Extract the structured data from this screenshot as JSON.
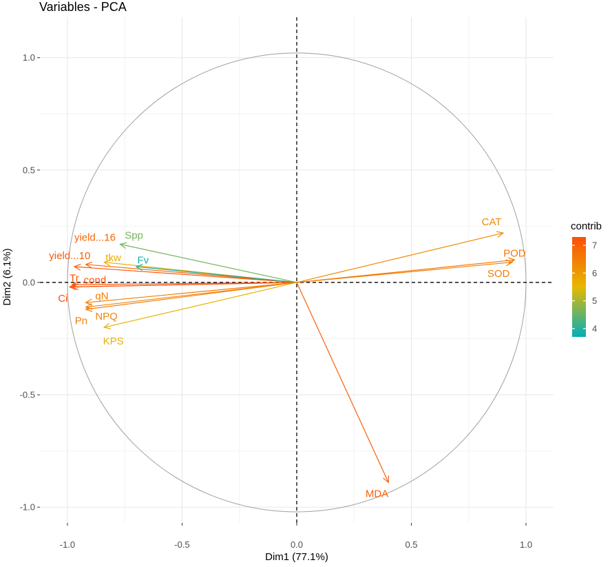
{
  "chart_data": {
    "type": "pca-variable-correlation-circle",
    "title": "Variables - PCA",
    "xlabel": "Dim1 (77.1%)",
    "ylabel": "Dim2 (6.1%)",
    "xlim": [
      -1.12,
      1.12
    ],
    "ylim": [
      -1.07,
      1.18
    ],
    "x_ticks": [
      -1.0,
      -0.5,
      0.0,
      0.5,
      1.0
    ],
    "x_tick_labels": [
      "-1.0",
      "-0.5",
      "0.0",
      "0.5",
      "1.0"
    ],
    "y_ticks": [
      -1.0,
      -0.5,
      0.0,
      0.5,
      1.0
    ],
    "y_tick_labels": [
      "-1.0",
      "-0.5",
      "0.0",
      "0.5",
      "1.0"
    ],
    "grid": true,
    "unit_circle": true,
    "reference_lines": "dashed at x=0 and y=0",
    "legend": {
      "title": "contrib",
      "position": "right",
      "range": [
        3.7,
        7.3
      ],
      "ticks": [
        4,
        5,
        6,
        7
      ],
      "tick_labels": [
        "4",
        "5",
        "6",
        "7"
      ],
      "gradient": [
        "#00AFBB",
        "#E7B800",
        "#FC4E07"
      ]
    },
    "variables": [
      {
        "name": "CAT",
        "x": 0.9,
        "y": 0.22,
        "contrib": 6.3,
        "label_dx": -0.05,
        "label_dy": 0.05
      },
      {
        "name": "POD",
        "x": 0.95,
        "y": 0.1,
        "contrib": 6.6,
        "label_dx": 0.0,
        "label_dy": 0.03
      },
      {
        "name": "SOD",
        "x": 0.94,
        "y": 0.09,
        "contrib": 6.5,
        "label_dx": -0.06,
        "label_dy": -0.05
      },
      {
        "name": "MDA",
        "x": 0.4,
        "y": -0.89,
        "contrib": 7.0,
        "label_dx": -0.05,
        "label_dy": -0.05
      },
      {
        "name": "yield...16",
        "x": -0.92,
        "y": 0.08,
        "contrib": 6.9,
        "label_dx": 0.04,
        "label_dy": 0.12
      },
      {
        "name": "yield...10",
        "x": -0.97,
        "y": 0.07,
        "contrib": 7.1,
        "label_dx": -0.02,
        "label_dy": 0.05
      },
      {
        "name": "Spp",
        "x": -0.77,
        "y": 0.17,
        "contrib": 4.6,
        "label_dx": 0.06,
        "label_dy": 0.04
      },
      {
        "name": "tkw",
        "x": -0.84,
        "y": 0.09,
        "contrib": 5.7,
        "label_dx": 0.04,
        "label_dy": 0.02
      },
      {
        "name": "Fv",
        "x": -0.7,
        "y": 0.07,
        "contrib": 3.9,
        "label_dx": 0.03,
        "label_dy": 0.03
      },
      {
        "name": "Tr",
        "x": -0.98,
        "y": -0.01,
        "contrib": 7.2,
        "label_dx": 0.01,
        "label_dy": 0.03
      },
      {
        "name": "cond",
        "x": -0.98,
        "y": -0.02,
        "contrib": 7.2,
        "label_dx": 0.1,
        "label_dy": 0.03
      },
      {
        "name": "Ci",
        "x": -0.99,
        "y": -0.02,
        "contrib": 7.3,
        "label_dx": -0.03,
        "label_dy": -0.05
      },
      {
        "name": "qN",
        "x": -0.92,
        "y": -0.09,
        "contrib": 6.5,
        "label_dx": 0.07,
        "label_dy": 0.03
      },
      {
        "name": "NPQ",
        "x": -0.92,
        "y": -0.11,
        "contrib": 6.4,
        "label_dx": 0.09,
        "label_dy": -0.04
      },
      {
        "name": "Pn",
        "x": -0.92,
        "y": -0.12,
        "contrib": 6.5,
        "label_dx": -0.02,
        "label_dy": -0.05
      },
      {
        "name": "KPS",
        "x": -0.84,
        "y": -0.2,
        "contrib": 5.6,
        "label_dx": 0.04,
        "label_dy": -0.06
      }
    ]
  }
}
